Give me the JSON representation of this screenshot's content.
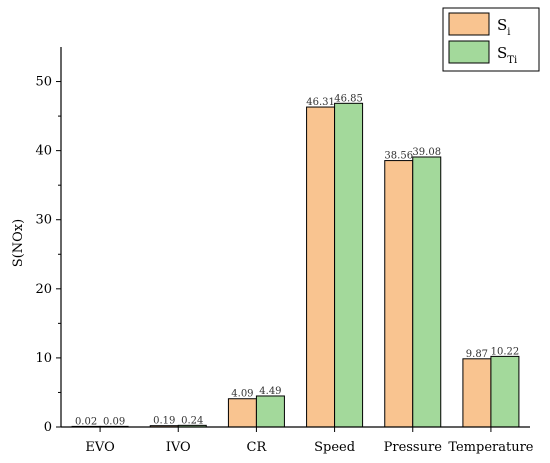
{
  "chart_data": {
    "type": "bar",
    "categories": [
      "EVO",
      "IVO",
      "CR",
      "Speed",
      "Pressure",
      "Temperature"
    ],
    "series": [
      {
        "name": "Si",
        "name_main": "S",
        "name_sub": "i",
        "color": "#F9C490",
        "values": [
          0.02,
          0.19,
          4.09,
          46.31,
          38.56,
          9.87
        ],
        "labels": [
          "0.02",
          "0.19",
          "4.09",
          "46.31",
          "38.56",
          "9.87"
        ]
      },
      {
        "name": "STi",
        "name_main": "S",
        "name_sub": "Ti",
        "color": "#A3D99B",
        "values": [
          0.09,
          0.24,
          4.49,
          46.85,
          39.08,
          10.22
        ],
        "labels": [
          "0.09",
          "0.24",
          "4.49",
          "46.85",
          "39.08",
          "10.22"
        ]
      }
    ],
    "ylabel": "S(NOx)",
    "ylim": [
      0,
      55
    ],
    "yticks": [
      0,
      10,
      20,
      30,
      40,
      50
    ],
    "grid": false,
    "legend": "top-right"
  }
}
